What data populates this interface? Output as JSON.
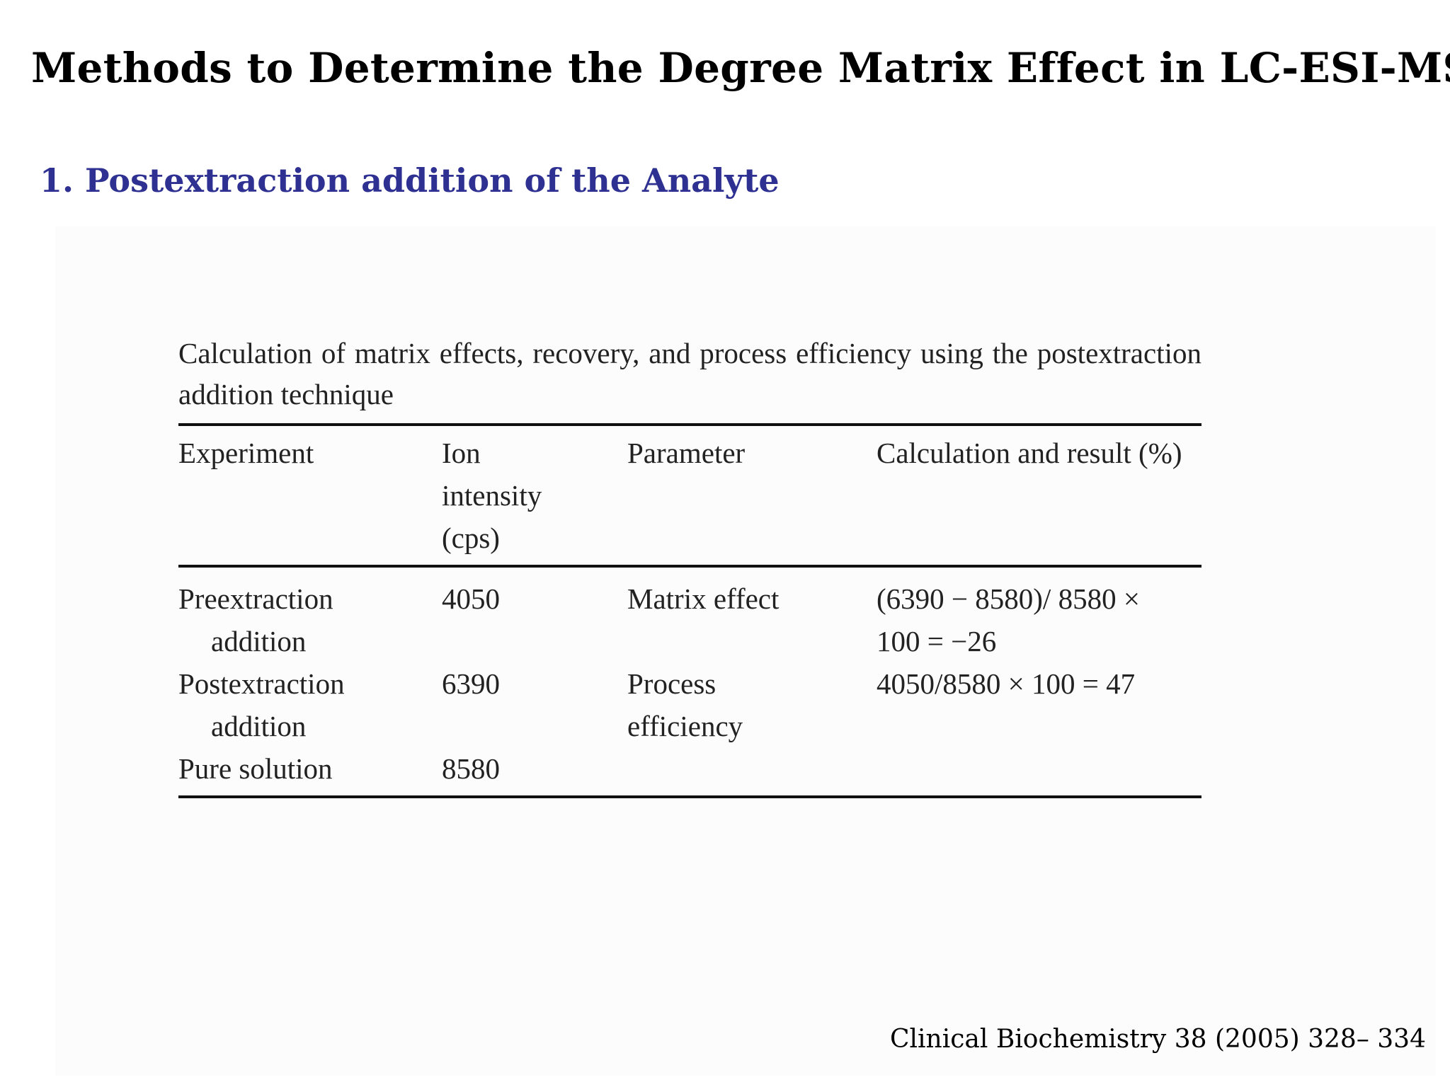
{
  "slide": {
    "title": "Methods to Determine the Degree Matrix Effect in LC-ESI-MS",
    "subtitle": "1. Postextraction addition of the Analyte",
    "footer_citation": "Clinical Biochemistry 38 (2005) 328– 334"
  },
  "table": {
    "caption": "Calculation of matrix effects, recovery, and process efficiency using the postextraction addition technique",
    "headers": [
      "Experiment",
      "Ion intensity (cps)",
      "Parameter",
      "Calculation and result (%)"
    ],
    "rows": [
      {
        "experiment": "Preextraction addition",
        "ion_intensity": "4050",
        "parameter": "Matrix effect",
        "calculation": "(6390 − 8580)/ 8580 × 100 = −26"
      },
      {
        "experiment": "Postextraction addition",
        "ion_intensity": "6390",
        "parameter": "Process efficiency",
        "calculation": "4050/8580 × 100 = 47"
      },
      {
        "experiment": "Pure solution",
        "ion_intensity": "8580",
        "parameter": "",
        "calculation": ""
      }
    ]
  },
  "colors": {
    "title": "#000000",
    "subtitle": "#2e3192",
    "table_text": "#222222"
  }
}
